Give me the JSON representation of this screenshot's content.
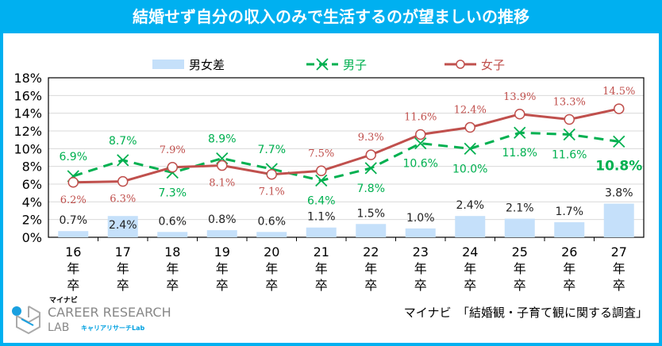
{
  "title": "結婚せず自分の収入のみで生活するのが望ましいの推移",
  "source": "マイナビ　「結婚観・子育て観に関する調査」",
  "logo": {
    "top": "マイナビ",
    "main": "CAREER RESEARCH",
    "sub": "LAB",
    "kana": "キャリアリサーチLab"
  },
  "chart_data": {
    "type": "bar+line",
    "categories": [
      "16\n年\n卒",
      "17\n年\n卒",
      "18\n年\n卒",
      "19\n年\n卒",
      "20\n年\n卒",
      "21\n年\n卒",
      "22\n年\n卒",
      "23\n年\n卒",
      "24\n年\n卒",
      "25\n年\n卒",
      "26\n年\n卒",
      "27\n年\n卒"
    ],
    "ylim": [
      0,
      18
    ],
    "yticks": [
      "0%",
      "2%",
      "4%",
      "6%",
      "8%",
      "10%",
      "12%",
      "14%",
      "16%",
      "18%"
    ],
    "grid": true,
    "legend_position": "top",
    "series": [
      {
        "name": "男女差",
        "type": "bar",
        "color": "#c5e0fa",
        "values": [
          0.7,
          2.4,
          0.6,
          0.8,
          0.6,
          1.1,
          1.5,
          1.0,
          2.4,
          2.1,
          1.7,
          3.8
        ],
        "labels": [
          "0.7%",
          "2.4%",
          "0.6%",
          "0.8%",
          "0.6%",
          "1.1%",
          "1.5%",
          "1.0%",
          "2.4%",
          "2.1%",
          "1.7%",
          "3.8%"
        ]
      },
      {
        "name": "男子",
        "type": "line",
        "style": "dashed",
        "marker": "x",
        "color": "#00b050",
        "values": [
          6.9,
          8.7,
          7.3,
          8.9,
          7.7,
          6.4,
          7.8,
          10.6,
          10.0,
          11.8,
          11.6,
          10.8
        ],
        "labels": [
          "6.9%",
          "8.7%",
          "7.3%",
          "8.9%",
          "7.7%",
          "6.4%",
          "7.8%",
          "10.6%",
          "10.0%",
          "11.8%",
          "11.6%",
          "10.8%"
        ]
      },
      {
        "name": "女子",
        "type": "line",
        "marker": "circle",
        "color": "#c0504d",
        "values": [
          6.2,
          6.3,
          7.9,
          8.1,
          7.1,
          7.5,
          9.3,
          11.6,
          12.4,
          13.9,
          13.3,
          14.5
        ],
        "labels": [
          "6.2%",
          "6.3%",
          "7.9%",
          "8.1%",
          "7.1%",
          "7.5%",
          "9.3%",
          "11.6%",
          "12.4%",
          "13.9%",
          "13.3%",
          "14.5%"
        ]
      }
    ]
  }
}
